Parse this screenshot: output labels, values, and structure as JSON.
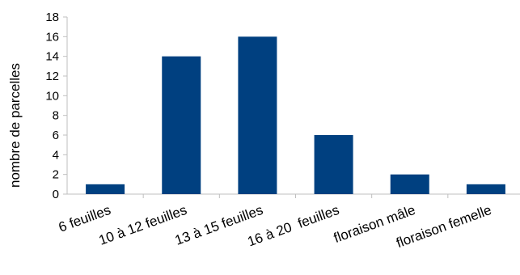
{
  "chart_data": {
    "type": "bar",
    "title": "",
    "xlabel": "",
    "ylabel": "nombre de parcelles",
    "categories": [
      "6 feuilles",
      "10 à 12 feuilles",
      "13 à 15 feuilles",
      "16 à 20  feuilles",
      "floraison mâle",
      "floraison femelle"
    ],
    "values": [
      1,
      14,
      16,
      6,
      2,
      1
    ],
    "ylim": [
      0,
      18
    ],
    "yticks": [
      0,
      2,
      4,
      6,
      8,
      10,
      12,
      14,
      16,
      18
    ],
    "grid": false,
    "legend": "none",
    "bar_color": "#004080",
    "axis_color": "#bfbfbf"
  }
}
